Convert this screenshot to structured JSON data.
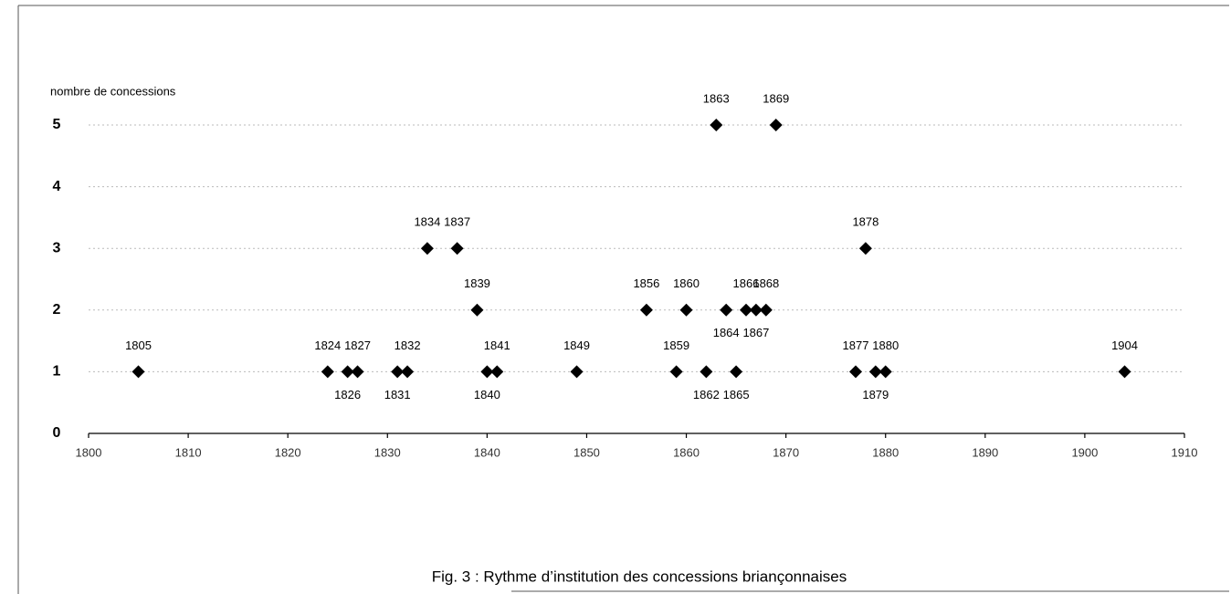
{
  "chart_data": {
    "type": "scatter",
    "title": "Fig. 3 : Rythme d’institution des concessions briançonnaises",
    "y_label": "nombre de concessions",
    "x": [
      1805,
      1824,
      1826,
      1827,
      1831,
      1832,
      1834,
      1837,
      1839,
      1840,
      1841,
      1849,
      1856,
      1859,
      1860,
      1862,
      1863,
      1864,
      1865,
      1866,
      1867,
      1868,
      1869,
      1877,
      1878,
      1879,
      1880,
      1904
    ],
    "values": [
      1,
      1,
      1,
      1,
      1,
      1,
      3,
      3,
      2,
      1,
      1,
      1,
      2,
      1,
      2,
      1,
      5,
      2,
      1,
      2,
      2,
      2,
      5,
      1,
      3,
      1,
      1,
      1
    ],
    "color": "#000000",
    "xlim": [
      1800,
      1910
    ],
    "xticks": [
      1800,
      1810,
      1820,
      1830,
      1840,
      1850,
      1860,
      1870,
      1880,
      1890,
      1900,
      1910
    ],
    "ylim": [
      0,
      5
    ],
    "yticks": [
      0,
      1,
      2,
      3,
      4,
      5
    ],
    "grid": true
  }
}
